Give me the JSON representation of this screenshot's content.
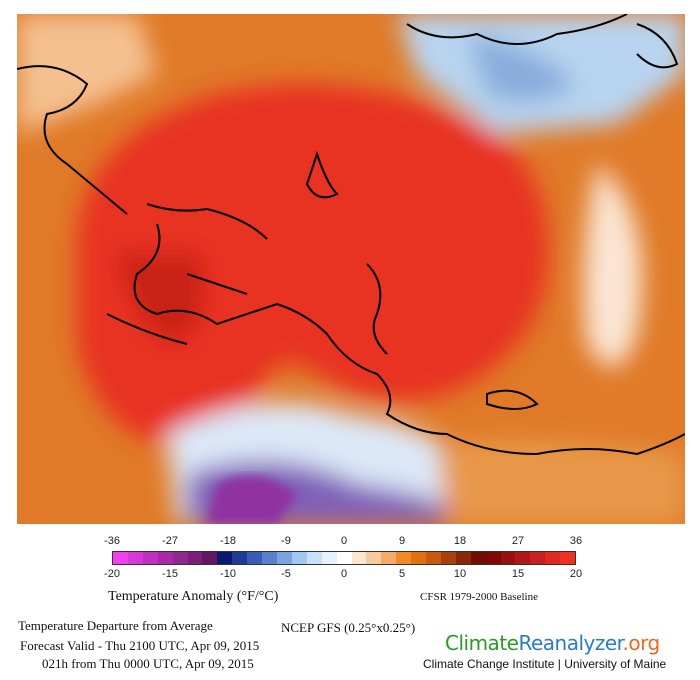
{
  "colorbar": {
    "f_ticks": [
      "-36",
      "-27",
      "-18",
      "-9",
      "0",
      "9",
      "18",
      "27",
      "36"
    ],
    "c_ticks": [
      "-20",
      "-15",
      "-10",
      "-5",
      "0",
      "5",
      "10",
      "15",
      "20"
    ],
    "colors": [
      "#f040f0",
      "#d838d8",
      "#c030c0",
      "#a828a8",
      "#902890",
      "#782078",
      "#601860",
      "#0a1a70",
      "#203a98",
      "#3a5cb8",
      "#5a80cc",
      "#7aa4e0",
      "#a0c8f0",
      "#c8e0f8",
      "#e8f2fc",
      "#ffffff",
      "#fbe6d0",
      "#f8caa0",
      "#f4aa68",
      "#f08a28",
      "#e07010",
      "#c85a10",
      "#a84010",
      "#882808",
      "#701000",
      "#800808",
      "#981010",
      "#b01818",
      "#c82020",
      "#e02820",
      "#f03020"
    ],
    "title": "Temperature Anomaly (°F/°C)",
    "baseline": "CFSR 1979-2000 Baseline"
  },
  "footer": {
    "line1": "Temperature Departure from Average",
    "model": "NCEP GFS (0.25°x0.25°)",
    "line2": "Forecast Valid - Thu 2100 UTC, Apr 09, 2015",
    "line3": "021h from Thu 0000 UTC, Apr 09, 2015",
    "logo_a": "Climate",
    "logo_b": "Reanalyzer",
    "logo_c": ".org",
    "institute": "Climate Change Institute | University of Maine"
  }
}
